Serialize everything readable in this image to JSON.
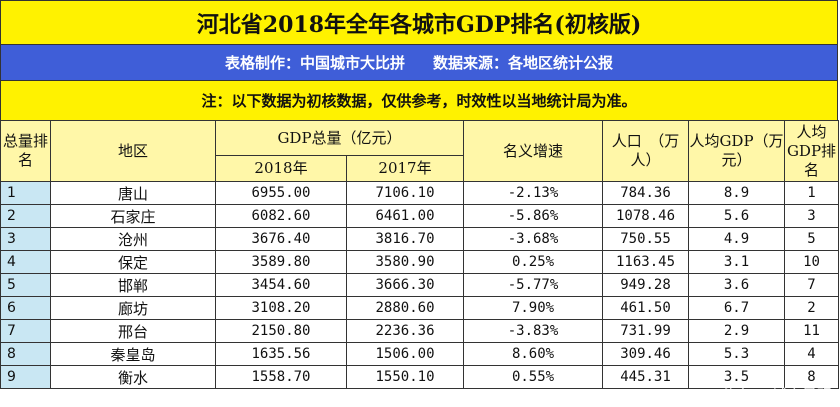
{
  "title": "河北省2018年全年各城市GDP排名(初核版)",
  "credit": {
    "maker": "表格制作：中国城市大比拼",
    "source": "数据来源：各地区统计公报"
  },
  "note": "注：以下数据为初核数据，仅供参考，时效性以当地统计局为准。",
  "headers": {
    "rank": "总量排名",
    "region": "地区",
    "gdp_total": "GDP总量（亿元）",
    "y2018": "2018年",
    "y2017": "2017年",
    "growth": "名义增速",
    "population": "人口　（万人）",
    "per_capita": "人均GDP（万元）",
    "per_capita_rank": "人均GDP排名"
  },
  "rows": [
    {
      "rank": "1",
      "region": "唐山",
      "y2018": "6955.00",
      "y2017": "7106.10",
      "growth": "-2.13%",
      "pop": "784.36",
      "pc": "8.9",
      "pcr": "1"
    },
    {
      "rank": "2",
      "region": "石家庄",
      "y2018": "6082.60",
      "y2017": "6461.00",
      "growth": "-5.86%",
      "pop": "1078.46",
      "pc": "5.6",
      "pcr": "3"
    },
    {
      "rank": "3",
      "region": "沧州",
      "y2018": "3676.40",
      "y2017": "3816.70",
      "growth": "-3.68%",
      "pop": "750.55",
      "pc": "4.9",
      "pcr": "5"
    },
    {
      "rank": "4",
      "region": "保定",
      "y2018": "3589.80",
      "y2017": "3580.90",
      "growth": "0.25%",
      "pop": "1163.45",
      "pc": "3.1",
      "pcr": "10"
    },
    {
      "rank": "5",
      "region": "邯郸",
      "y2018": "3454.60",
      "y2017": "3666.30",
      "growth": "-5.77%",
      "pop": "949.28",
      "pc": "3.6",
      "pcr": "7"
    },
    {
      "rank": "6",
      "region": "廊坊",
      "y2018": "3108.20",
      "y2017": "2880.60",
      "growth": "7.90%",
      "pop": "461.50",
      "pc": "6.7",
      "pcr": "2"
    },
    {
      "rank": "7",
      "region": "邢台",
      "y2018": "2150.80",
      "y2017": "2236.36",
      "growth": "-3.83%",
      "pop": "731.99",
      "pc": "2.9",
      "pcr": "11"
    },
    {
      "rank": "8",
      "region": "秦皇岛",
      "y2018": "1635.56",
      "y2017": "1506.00",
      "growth": "8.60%",
      "pop": "309.46",
      "pc": "5.3",
      "pcr": "4"
    },
    {
      "rank": "9",
      "region": "衡水",
      "y2018": "1558.70",
      "y2017": "1550.10",
      "growth": "0.55%",
      "pop": "445.31",
      "pc": "3.5",
      "pcr": "8"
    }
  ],
  "watermark": "头条 @城市景观",
  "colors": {
    "title_bg": "#fff200",
    "credit_bg": "#3f5ed8",
    "header_bg": "#fff7a8",
    "rank_bg": "#c9e7f3"
  }
}
